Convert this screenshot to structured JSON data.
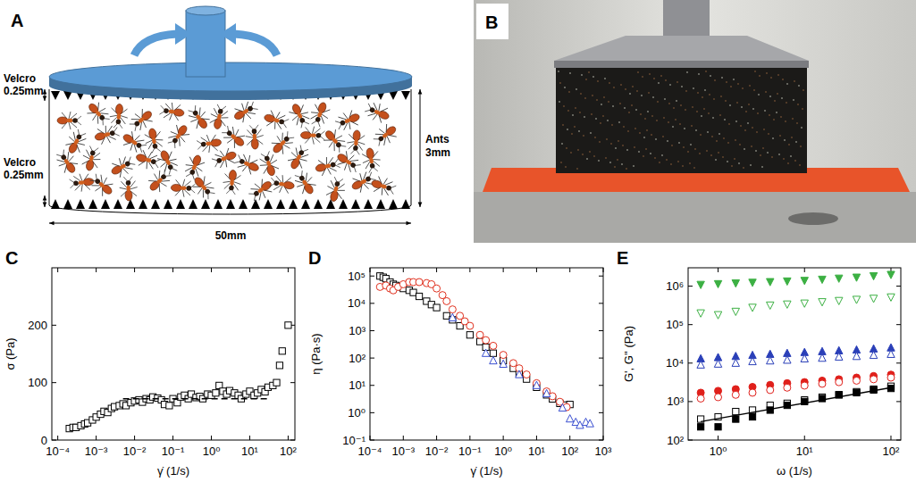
{
  "diagram": {
    "panel": "A",
    "velcro_top": [
      "Velcro",
      "0.25mm"
    ],
    "velcro_bottom": [
      "Velcro",
      "0.25mm"
    ],
    "ants": [
      "Ants",
      "3mm"
    ],
    "width": "50mm"
  },
  "photo": {
    "panel": "B"
  },
  "chart_data": [
    {
      "type": "scatter",
      "panel": "C",
      "x_label": "γ̇ (1/s)",
      "y_label": "σ (Pa)",
      "log": "x",
      "xlim": [
        7e-05,
        150
      ],
      "ylim": [
        0,
        300
      ],
      "xticks": [
        {
          "value": 0.0001,
          "label": "10⁻⁴"
        },
        {
          "value": 0.001,
          "label": "10⁻³"
        },
        {
          "value": 0.01,
          "label": "10⁻²"
        },
        {
          "value": 0.1,
          "label": "10⁻¹"
        },
        {
          "value": 1,
          "label": "10⁰"
        },
        {
          "value": 10,
          "label": "10¹"
        },
        {
          "value": 100,
          "label": "10²"
        }
      ],
      "yticks": [
        0,
        100,
        200
      ],
      "series": [
        {
          "color": "#000000",
          "marker": "square-open",
          "x": [
            0.0002,
            0.00025,
            0.0003,
            0.0004,
            0.0005,
            0.0006,
            0.0008,
            0.001,
            0.0013,
            0.0016,
            0.002,
            0.0025,
            0.003,
            0.004,
            0.005,
            0.006,
            0.008,
            0.01,
            0.013,
            0.016,
            0.02,
            0.025,
            0.03,
            0.04,
            0.05,
            0.06,
            0.08,
            0.1,
            0.13,
            0.16,
            0.2,
            0.25,
            0.3,
            0.4,
            0.5,
            0.6,
            0.8,
            1,
            1.3,
            1.6,
            2,
            2.5,
            3,
            4,
            5,
            6,
            8,
            10,
            13,
            16,
            20,
            25,
            30,
            40,
            50,
            60,
            70,
            100
          ],
          "values": [
            20,
            22,
            22,
            25,
            28,
            30,
            35,
            40,
            45,
            50,
            48,
            55,
            58,
            60,
            63,
            60,
            65,
            68,
            70,
            66,
            72,
            70,
            75,
            73,
            70,
            62,
            60,
            72,
            65,
            75,
            78,
            72,
            80,
            74,
            76,
            72,
            80,
            78,
            82,
            95,
            85,
            80,
            86,
            82,
            78,
            72,
            80,
            85,
            78,
            82,
            88,
            84,
            92,
            95,
            100,
            130,
            155,
            200
          ]
        },
        {
          "type": "line",
          "color": "#000000",
          "line_style": "dashed",
          "x": [
            0.005,
            30
          ],
          "values": [
            72,
            72
          ]
        }
      ]
    },
    {
      "type": "scatter",
      "panel": "D",
      "x_label": "γ̇ (1/s)",
      "y_label": "η (Pa·s)",
      "log": true,
      "xlim": [
        0.0001,
        1000
      ],
      "ylim": [
        0.1,
        200000
      ],
      "xticks": [
        {
          "value": 0.0001,
          "label": "10⁻⁴"
        },
        {
          "value": 0.001,
          "label": "10⁻³"
        },
        {
          "value": 0.01,
          "label": "10⁻²"
        },
        {
          "value": 0.1,
          "label": "10⁻¹"
        },
        {
          "value": 1,
          "label": "10⁰"
        },
        {
          "value": 10,
          "label": "10¹"
        },
        {
          "value": 100,
          "label": "10²"
        },
        {
          "value": 1000,
          "label": "10³"
        }
      ],
      "yticks": [
        {
          "value": 0.1,
          "label": "10⁻¹"
        },
        {
          "value": 1,
          "label": "10⁰"
        },
        {
          "value": 10,
          "label": "10¹"
        },
        {
          "value": 100,
          "label": "10²"
        },
        {
          "value": 1000,
          "label": "10³"
        },
        {
          "value": 10000,
          "label": "10⁴"
        },
        {
          "value": 100000,
          "label": "10⁵"
        }
      ],
      "series": [
        {
          "color": "#000000",
          "marker": "square-open",
          "x": [
            0.0002,
            0.00025,
            0.0003,
            0.0004,
            0.0005,
            0.0006,
            0.0008,
            0.001,
            0.0015,
            0.002,
            0.003,
            0.005,
            0.007,
            0.01,
            0.02,
            0.03,
            0.05,
            0.1,
            0.2,
            0.3,
            0.5,
            1,
            2,
            3,
            5,
            10,
            20,
            30,
            50,
            70,
            100
          ],
          "values": [
            100000,
            90000,
            80000,
            60000,
            50000,
            45000,
            40000,
            35000,
            30000,
            25000,
            18000,
            12000,
            9000,
            7000,
            3500,
            2500,
            1500,
            700,
            400,
            250,
            150,
            80,
            42,
            28,
            17,
            8.5,
            4.5,
            3.2,
            2.2,
            1.9,
            2
          ]
        },
        {
          "color": "#e0301e",
          "marker": "circle-open",
          "x": [
            0.0002,
            0.0003,
            0.0004,
            0.0005,
            0.0007,
            0.001,
            0.0015,
            0.002,
            0.003,
            0.005,
            0.007,
            0.01,
            0.015,
            0.02,
            0.03,
            0.05,
            0.07,
            0.1,
            0.2,
            0.3,
            0.5,
            1,
            2,
            3,
            5,
            10,
            20,
            30,
            50,
            80
          ],
          "values": [
            40000,
            45000,
            35000,
            30000,
            40000,
            50000,
            60000,
            60000,
            60000,
            55000,
            50000,
            35000,
            20000,
            12000,
            6000,
            3500,
            2200,
            1500,
            700,
            450,
            280,
            130,
            65,
            42,
            25,
            12,
            6,
            4,
            2.5,
            1.6
          ]
        },
        {
          "color": "#3a4fd0",
          "marker": "triangle-open",
          "x": [
            0.03,
            0.3,
            0.5,
            1,
            3,
            10,
            20,
            60,
            100,
            150,
            200,
            300,
            400
          ],
          "values": [
            3000,
            150,
            80,
            60,
            25,
            10,
            5,
            1.5,
            0.6,
            0.45,
            0.35,
            0.45,
            0.4
          ]
        }
      ]
    },
    {
      "type": "scatter",
      "panel": "E",
      "x_label": "ω (1/s)",
      "y_label": "G', G'' (Pa)",
      "log": true,
      "xlim": [
        0.45,
        130
      ],
      "ylim": [
        100,
        3000000
      ],
      "xticks": [
        {
          "value": 1,
          "label": "10⁰"
        },
        {
          "value": 10,
          "label": "10¹"
        },
        {
          "value": 100,
          "label": "10²"
        }
      ],
      "yticks": [
        {
          "value": 100,
          "label": "10²"
        },
        {
          "value": 1000,
          "label": "10³"
        },
        {
          "value": 10000,
          "label": "10⁴"
        },
        {
          "value": 100000,
          "label": "10⁵"
        },
        {
          "value": 1000000,
          "label": "10⁶"
        }
      ],
      "series": [
        {
          "color": "#3cb043",
          "marker": "triangle-down",
          "x": [
            0.63,
            1,
            1.6,
            2.5,
            4,
            6.3,
            10,
            16,
            25,
            40,
            63,
            100
          ],
          "values": [
            1100000,
            1150000,
            1200000,
            1250000,
            1300000,
            1350000,
            1400000,
            1500000,
            1600000,
            1700000,
            1850000,
            2000000
          ]
        },
        {
          "color": "#3cb043",
          "marker": "triangle-down-open",
          "x": [
            0.63,
            1,
            1.6,
            2.5,
            4,
            6.3,
            10,
            16,
            25,
            40,
            63,
            100
          ],
          "values": [
            200000,
            180000,
            220000,
            280000,
            320000,
            340000,
            360000,
            390000,
            420000,
            450000,
            480000,
            520000
          ]
        },
        {
          "color": "#2a3fb8",
          "marker": "triangle",
          "x": [
            0.63,
            1,
            1.6,
            2.5,
            4,
            6.3,
            10,
            16,
            25,
            40,
            63,
            100
          ],
          "values": [
            13000,
            14000,
            15000,
            16000,
            17000,
            18000,
            19000,
            20000,
            21000,
            22000,
            23500,
            25000
          ]
        },
        {
          "color": "#2a3fb8",
          "marker": "triangle-open",
          "x": [
            0.63,
            1,
            1.6,
            2.5,
            4,
            6.3,
            10,
            16,
            25,
            40,
            63,
            100
          ],
          "values": [
            9000,
            9500,
            10000,
            11000,
            11500,
            12000,
            13000,
            13500,
            14500,
            15000,
            16000,
            17000
          ]
        },
        {
          "color": "#e0201b",
          "marker": "circle",
          "x": [
            0.63,
            1,
            1.6,
            2.5,
            4,
            6.3,
            10,
            16,
            25,
            40,
            63,
            100
          ],
          "values": [
            1700,
            1900,
            2100,
            2400,
            2700,
            3000,
            3200,
            3500,
            3800,
            4200,
            4600,
            5000
          ]
        },
        {
          "color": "#e0201b",
          "marker": "circle-open",
          "x": [
            0.63,
            1,
            1.6,
            2.5,
            4,
            6.3,
            10,
            16,
            25,
            40,
            63,
            100
          ],
          "values": [
            1200,
            1300,
            1500,
            1700,
            2000,
            2300,
            2600,
            2900,
            3200,
            3500,
            3800,
            4200
          ]
        },
        {
          "color": "#000000",
          "marker": "square-open",
          "x": [
            0.63,
            1,
            1.6,
            2.5,
            4,
            6.3,
            10,
            16,
            25,
            40,
            63,
            100
          ],
          "values": [
            350,
            400,
            550,
            600,
            800,
            900,
            1100,
            1300,
            1500,
            1800,
            2100,
            2500
          ]
        },
        {
          "color": "#000000",
          "marker": "square",
          "x": [
            0.63,
            1,
            1.6,
            2.5,
            4,
            6.3,
            10,
            16,
            25,
            40,
            63,
            100
          ],
          "values": [
            220,
            220,
            350,
            400,
            600,
            800,
            1000,
            1200,
            1500,
            1700,
            2000,
            2200
          ]
        },
        {
          "type": "line",
          "color": "#000000",
          "line_style": "solid",
          "x": [
            0.63,
            100
          ],
          "values": [
            300,
            2300
          ]
        }
      ]
    }
  ]
}
